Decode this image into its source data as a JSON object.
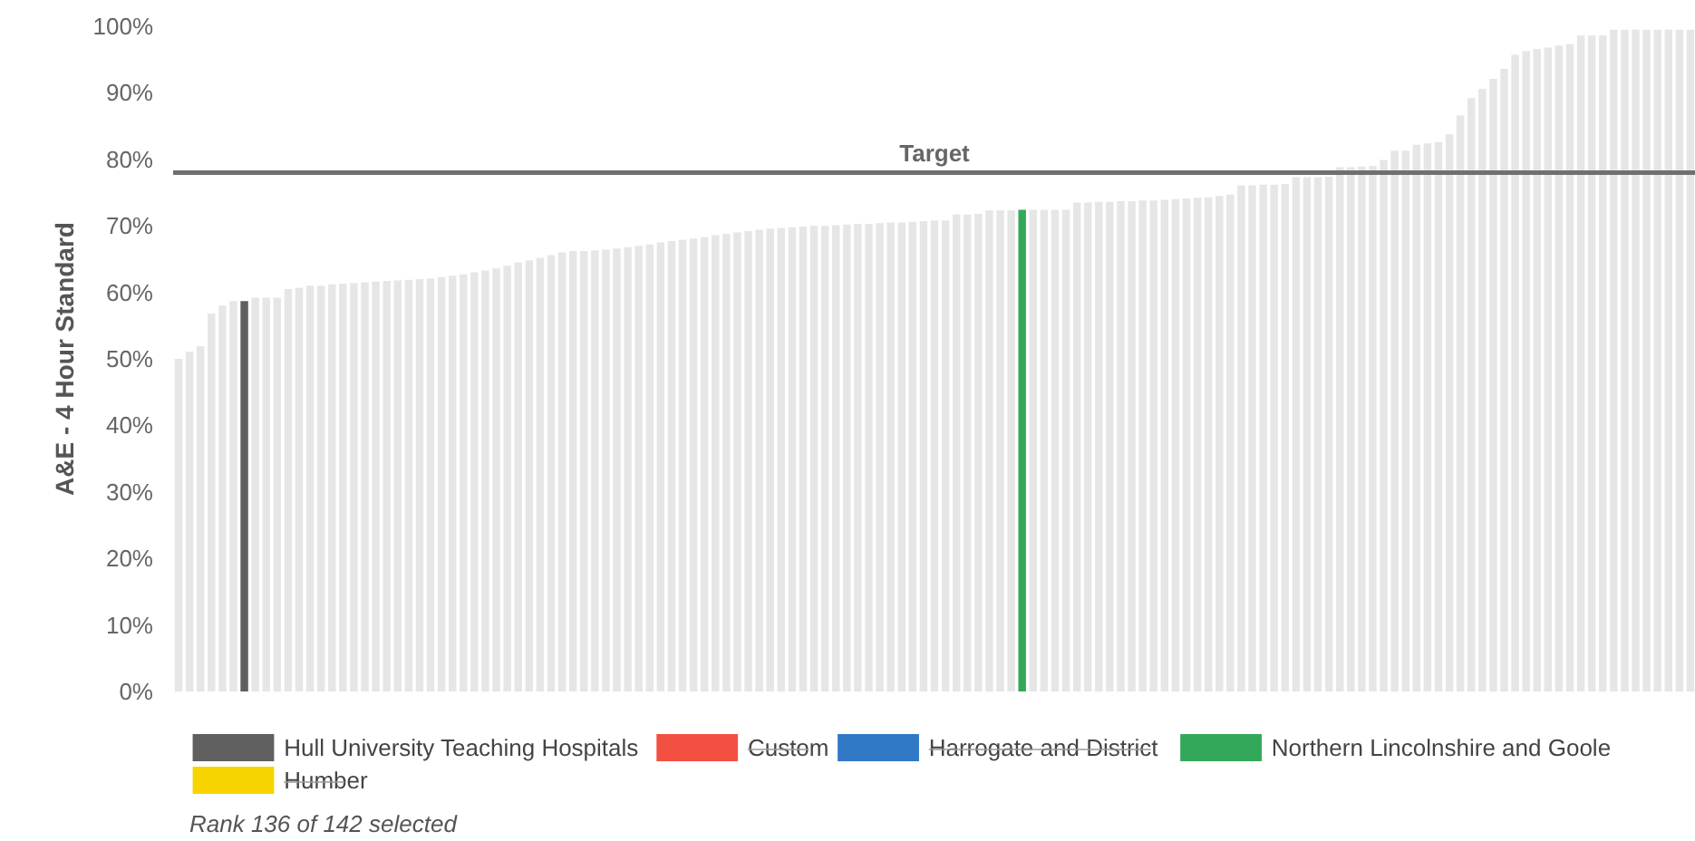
{
  "chart_data": {
    "type": "bar",
    "ylabel": "A&E - 4 Hour Standard",
    "categories": [
      null,
      null,
      null,
      null,
      null,
      null,
      null,
      null,
      null,
      null,
      null,
      null,
      null,
      null,
      null,
      null,
      null,
      null,
      null,
      null,
      null,
      null,
      null,
      null,
      null,
      null,
      null,
      null,
      null,
      null,
      null,
      null,
      null,
      null,
      null,
      null,
      null,
      null,
      null,
      null,
      null,
      null,
      null,
      null,
      null,
      null,
      null,
      null,
      null,
      null,
      null,
      null,
      null,
      null,
      null,
      null,
      null,
      null,
      null,
      null,
      null,
      null,
      null,
      null,
      null,
      null,
      null,
      null,
      null,
      null,
      null,
      null,
      null,
      null,
      null,
      null,
      null,
      null,
      null,
      null,
      null,
      null,
      null,
      null,
      null,
      null,
      null,
      null,
      null,
      null,
      null,
      null,
      null,
      null,
      null,
      null,
      null,
      null,
      null,
      null,
      null,
      null,
      null,
      null,
      null,
      null,
      null,
      null,
      null,
      null,
      null,
      null,
      null,
      null,
      null,
      null,
      null,
      null,
      null,
      null,
      null,
      null,
      null,
      null,
      null,
      null,
      null,
      null,
      null,
      null,
      null,
      null,
      null,
      null,
      null,
      null,
      null,
      null,
      null
    ],
    "ylim": [
      0,
      100
    ],
    "yticks": [
      {
        "value": 0,
        "label": "0%"
      },
      {
        "value": 10,
        "label": "10%"
      },
      {
        "value": 20,
        "label": "20%"
      },
      {
        "value": 30,
        "label": "30%"
      },
      {
        "value": 40,
        "label": "40%"
      },
      {
        "value": 50,
        "label": "50%"
      },
      {
        "value": 60,
        "label": "60%"
      },
      {
        "value": 70,
        "label": "70%"
      },
      {
        "value": 80,
        "label": "80%"
      },
      {
        "value": 90,
        "label": "90%"
      },
      {
        "value": 100,
        "label": "100%"
      }
    ],
    "tick_labels": "y",
    "grid": false,
    "legend": "bottom",
    "series": [
      {
        "color": "#e6e6e6",
        "values": [
          50,
          51.1,
          51.9,
          56.8,
          58,
          58.7,
          null,
          59.2,
          59.2,
          59.2,
          60.5,
          60.7,
          61,
          61,
          61.2,
          61.3,
          61.4,
          61.5,
          61.6,
          61.7,
          61.8,
          61.9,
          62,
          62.1,
          62.3,
          62.5,
          62.7,
          63,
          63.3,
          63.6,
          64,
          64.5,
          64.8,
          65.2,
          65.6,
          66,
          66.2,
          66.2,
          66.3,
          66.4,
          66.6,
          66.8,
          67,
          67.2,
          67.5,
          67.7,
          67.9,
          68.1,
          68.3,
          68.6,
          68.8,
          69,
          69.2,
          69.4,
          69.6,
          69.7,
          69.8,
          69.9,
          70,
          70,
          70.1,
          70.2,
          70.3,
          70.3,
          70.4,
          70.5,
          70.5,
          70.6,
          70.7,
          70.8,
          70.8,
          71.7,
          71.7,
          71.8,
          72.3,
          72.3,
          72.3,
          null,
          72.4,
          72.4,
          72.4,
          72.4,
          73.5,
          73.5,
          73.6,
          73.6,
          73.7,
          73.7,
          73.8,
          73.8,
          73.9,
          74,
          74.1,
          74.2,
          74.3,
          74.5,
          74.7,
          76.1,
          76.1,
          76.2,
          76.2,
          76.3,
          77.3,
          77.3,
          77.3,
          77.4,
          78.8,
          78.8,
          78.9,
          79,
          79.9,
          81.3,
          81.3,
          82.2,
          82.4,
          82.6,
          83.8,
          86.6,
          89.2,
          90.6,
          92.1,
          93.6,
          95.7,
          96.3,
          96.6,
          96.8,
          97.1,
          97.3,
          98.6,
          98.6,
          98.6,
          99.5,
          99.5,
          99.5,
          99.5,
          99.5,
          99.5,
          99.5,
          99.5
        ]
      },
      {
        "name": "Hull University Teaching Hospitals",
        "color": "#5f5f5f",
        "values": [
          null,
          null,
          null,
          null,
          null,
          null,
          58.7,
          null,
          null,
          null,
          null,
          null,
          null,
          null,
          null,
          null,
          null,
          null,
          null,
          null,
          null,
          null,
          null,
          null,
          null,
          null,
          null,
          null,
          null,
          null,
          null,
          null,
          null,
          null,
          null,
          null,
          null,
          null,
          null,
          null,
          null,
          null,
          null,
          null,
          null,
          null,
          null,
          null,
          null,
          null,
          null,
          null,
          null,
          null,
          null,
          null,
          null,
          null,
          null,
          null,
          null,
          null,
          null,
          null,
          null,
          null,
          null,
          null,
          null,
          null,
          null,
          null,
          null,
          null,
          null,
          null,
          null,
          null,
          null,
          null,
          null,
          null,
          null,
          null,
          null,
          null,
          null,
          null,
          null,
          null,
          null,
          null,
          null,
          null,
          null,
          null,
          null,
          null,
          null,
          null,
          null,
          null,
          null,
          null,
          null,
          null,
          null,
          null,
          null,
          null,
          null,
          null,
          null,
          null,
          null,
          null,
          null,
          null,
          null,
          null,
          null,
          null,
          null,
          null,
          null,
          null,
          null,
          null,
          null,
          null,
          null,
          null,
          null,
          null,
          null,
          null,
          null,
          null,
          null
        ]
      },
      {
        "name": "Custom",
        "color": "#f25041",
        "values": [
          null,
          null,
          null,
          null,
          null,
          null,
          null,
          null,
          null,
          null,
          null,
          null,
          null,
          null,
          null,
          null,
          null,
          null,
          null,
          null,
          null,
          null,
          null,
          null,
          null,
          null,
          null,
          null,
          null,
          null,
          null,
          null,
          null,
          null,
          null,
          null,
          null,
          null,
          null,
          null,
          null,
          null,
          null,
          null,
          null,
          null,
          null,
          null,
          null,
          null,
          null,
          null,
          null,
          null,
          null,
          null,
          null,
          null,
          null,
          null,
          null,
          null,
          null,
          null,
          null,
          null,
          null,
          null,
          null,
          null,
          null,
          null,
          null,
          null,
          null,
          null,
          null,
          null,
          null,
          null,
          null,
          null,
          null,
          null,
          null,
          null,
          null,
          null,
          null,
          null,
          null,
          null,
          null,
          null,
          null,
          null,
          null,
          null,
          null,
          null,
          null,
          null,
          null,
          null,
          null,
          null,
          null,
          null,
          null,
          null,
          null,
          null,
          null,
          null,
          null,
          null,
          null,
          null,
          null,
          null,
          null,
          null,
          null,
          null,
          null,
          null,
          null,
          null,
          null,
          null,
          null,
          null,
          null,
          null,
          null,
          null,
          null,
          null,
          null
        ]
      },
      {
        "name": "Harrogate and District",
        "color": "#3179c6",
        "values": [
          null,
          null,
          null,
          null,
          null,
          null,
          null,
          null,
          null,
          null,
          null,
          null,
          null,
          null,
          null,
          null,
          null,
          null,
          null,
          null,
          null,
          null,
          null,
          null,
          null,
          null,
          null,
          null,
          null,
          null,
          null,
          null,
          null,
          null,
          null,
          null,
          null,
          null,
          null,
          null,
          null,
          null,
          null,
          null,
          null,
          null,
          null,
          null,
          null,
          null,
          null,
          null,
          null,
          null,
          null,
          null,
          null,
          null,
          null,
          null,
          null,
          null,
          null,
          null,
          null,
          null,
          null,
          null,
          null,
          null,
          null,
          null,
          null,
          null,
          null,
          null,
          null,
          null,
          null,
          null,
          null,
          null,
          null,
          null,
          null,
          null,
          null,
          null,
          null,
          null,
          null,
          null,
          null,
          null,
          null,
          null,
          null,
          null,
          null,
          null,
          null,
          null,
          null,
          null,
          null,
          null,
          null,
          null,
          null,
          null,
          null,
          null,
          null,
          null,
          null,
          null,
          null,
          null,
          null,
          null,
          null,
          null,
          null,
          null,
          null,
          null,
          null,
          null,
          null,
          null,
          null,
          null,
          null,
          null,
          null,
          null,
          null,
          null,
          null
        ]
      },
      {
        "name": "Northern Lincolnshire and Goole",
        "color": "#34a85a",
        "values": [
          null,
          null,
          null,
          null,
          null,
          null,
          null,
          null,
          null,
          null,
          null,
          null,
          null,
          null,
          null,
          null,
          null,
          null,
          null,
          null,
          null,
          null,
          null,
          null,
          null,
          null,
          null,
          null,
          null,
          null,
          null,
          null,
          null,
          null,
          null,
          null,
          null,
          null,
          null,
          null,
          null,
          null,
          null,
          null,
          null,
          null,
          null,
          null,
          null,
          null,
          null,
          null,
          null,
          null,
          null,
          null,
          null,
          null,
          null,
          null,
          null,
          null,
          null,
          null,
          null,
          null,
          null,
          null,
          null,
          null,
          null,
          null,
          null,
          null,
          null,
          null,
          null,
          72.4,
          null,
          null,
          null,
          null,
          null,
          null,
          null,
          null,
          null,
          null,
          null,
          null,
          null,
          null,
          null,
          null,
          null,
          null,
          null,
          null,
          null,
          null,
          null,
          null,
          null,
          null,
          null,
          null,
          null,
          null,
          null,
          null,
          null,
          null,
          null,
          null,
          null,
          null,
          null,
          null,
          null,
          null,
          null,
          null,
          null,
          null,
          null,
          null,
          null,
          null,
          null,
          null,
          null,
          null,
          null,
          null,
          null,
          null,
          null,
          null,
          null
        ]
      },
      {
        "name": "Humber",
        "color": "#f7d400",
        "values": [
          null,
          null,
          null,
          null,
          null,
          null,
          null,
          null,
          null,
          null,
          null,
          null,
          null,
          null,
          null,
          null,
          null,
          null,
          null,
          null,
          null,
          null,
          null,
          null,
          null,
          null,
          null,
          null,
          null,
          null,
          null,
          null,
          null,
          null,
          null,
          null,
          null,
          null,
          null,
          null,
          null,
          null,
          null,
          null,
          null,
          null,
          null,
          null,
          null,
          null,
          null,
          null,
          null,
          null,
          null,
          null,
          null,
          null,
          null,
          null,
          null,
          null,
          null,
          null,
          null,
          null,
          null,
          null,
          null,
          null,
          null,
          null,
          null,
          null,
          null,
          null,
          null,
          null,
          null,
          null,
          null,
          null,
          null,
          null,
          null,
          null,
          null,
          null,
          null,
          null,
          null,
          null,
          null,
          null,
          null,
          null,
          null,
          null,
          null,
          null,
          null,
          null,
          null,
          null,
          null,
          null,
          null,
          null,
          null,
          null,
          null,
          null,
          null,
          null,
          null,
          null,
          null,
          null,
          null,
          null,
          null,
          null,
          null,
          null,
          null,
          null,
          null,
          null,
          null,
          null,
          null,
          null,
          null,
          null,
          null,
          null,
          null,
          null,
          null
        ]
      }
    ],
    "ref_lines": [
      {
        "axis": "y",
        "value": 78,
        "label": "Target",
        "color": "#707070",
        "line_style": "solid"
      }
    ],
    "annotations": [
      "Rank 136 of 142 selected"
    ]
  }
}
